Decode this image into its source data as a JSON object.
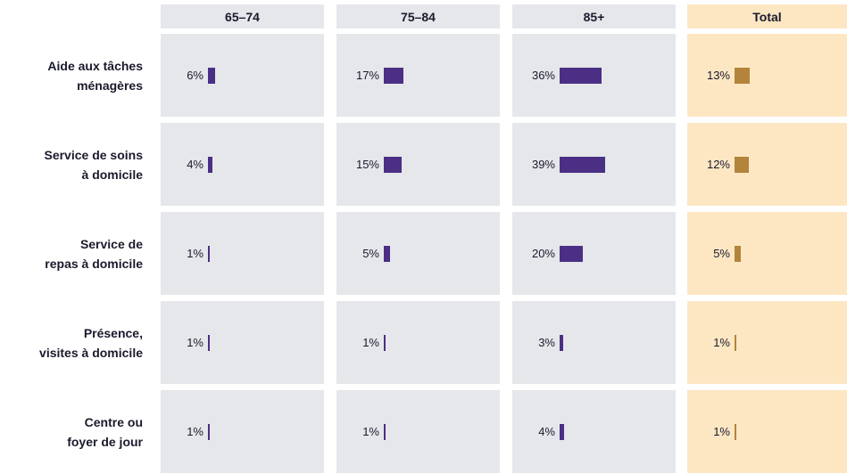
{
  "chart_data": {
    "type": "bar",
    "categories": [
      "Aide aux tâches\nménagères",
      "Service de soins\nà domicile",
      "Service de\nrepas à domicile",
      "Présence,\nvisites à domicile",
      "Centre ou\nfoyer de jour"
    ],
    "series": [
      {
        "name": "65–74",
        "color": "#4a2f85",
        "background": "#e5e7ea",
        "values": [
          6,
          4,
          1,
          1,
          1
        ],
        "value_labels": [
          "6%",
          "4%",
          "1%",
          "1%",
          "1%"
        ]
      },
      {
        "name": "75–84",
        "color": "#4a2f85",
        "background": "#e5e7ea",
        "values": [
          17,
          15,
          5,
          1,
          1
        ],
        "value_labels": [
          "17%",
          "15%",
          "5%",
          "1%",
          "1%"
        ]
      },
      {
        "name": "85+",
        "color": "#4a2f85",
        "background": "#e5e7ea",
        "values": [
          36,
          39,
          20,
          3,
          4
        ],
        "value_labels": [
          "36%",
          "39%",
          "20%",
          "3%",
          "4%"
        ]
      },
      {
        "name": "Total",
        "color": "#b3843b",
        "background": "#fde7c3",
        "values": [
          13,
          12,
          5,
          1,
          1
        ],
        "value_labels": [
          "13%",
          "12%",
          "5%",
          "1%",
          "1%"
        ]
      }
    ]
  }
}
